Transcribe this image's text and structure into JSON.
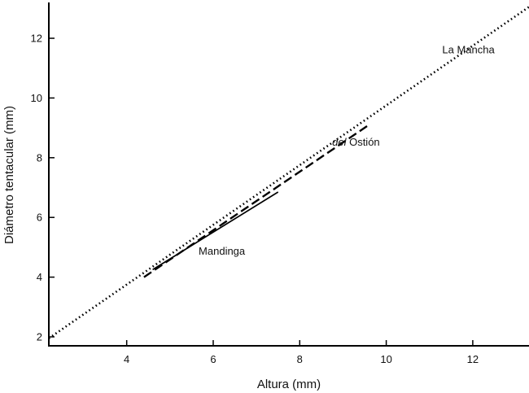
{
  "chart_data": {
    "type": "line",
    "title": "",
    "xlabel": "Altura (mm)",
    "ylabel": "Diámetro tentacular (mm)",
    "xlim": [
      2.2,
      13.3
    ],
    "ylim": [
      1.7,
      13.2
    ],
    "xticks": [
      4,
      6,
      8,
      10,
      12
    ],
    "yticks": [
      2,
      4,
      6,
      8,
      10,
      12
    ],
    "grid": false,
    "series": [
      {
        "name": "La Mancha",
        "style": "dotted",
        "color": "#000000",
        "x": [
          2.2,
          13.3
        ],
        "y": [
          1.95,
          13.05
        ]
      },
      {
        "name": "del Ostión",
        "style": "dashed",
        "color": "#000000",
        "x": [
          4.4,
          9.6
        ],
        "y": [
          4.0,
          9.1
        ]
      },
      {
        "name": "Mandinga",
        "style": "solid",
        "color": "#000000",
        "x": [
          4.6,
          7.5
        ],
        "y": [
          4.25,
          6.85
        ]
      }
    ],
    "annotations": [
      {
        "series": "La Mancha",
        "text": "La Mancha",
        "x": 11.9,
        "y": 11.5
      },
      {
        "series": "del Ostión",
        "italic": "del",
        "text": " Ostión",
        "x": 9.3,
        "y": 8.4
      },
      {
        "series": "Mandinga",
        "text": "Mandinga",
        "x": 6.2,
        "y": 4.75
      }
    ]
  }
}
